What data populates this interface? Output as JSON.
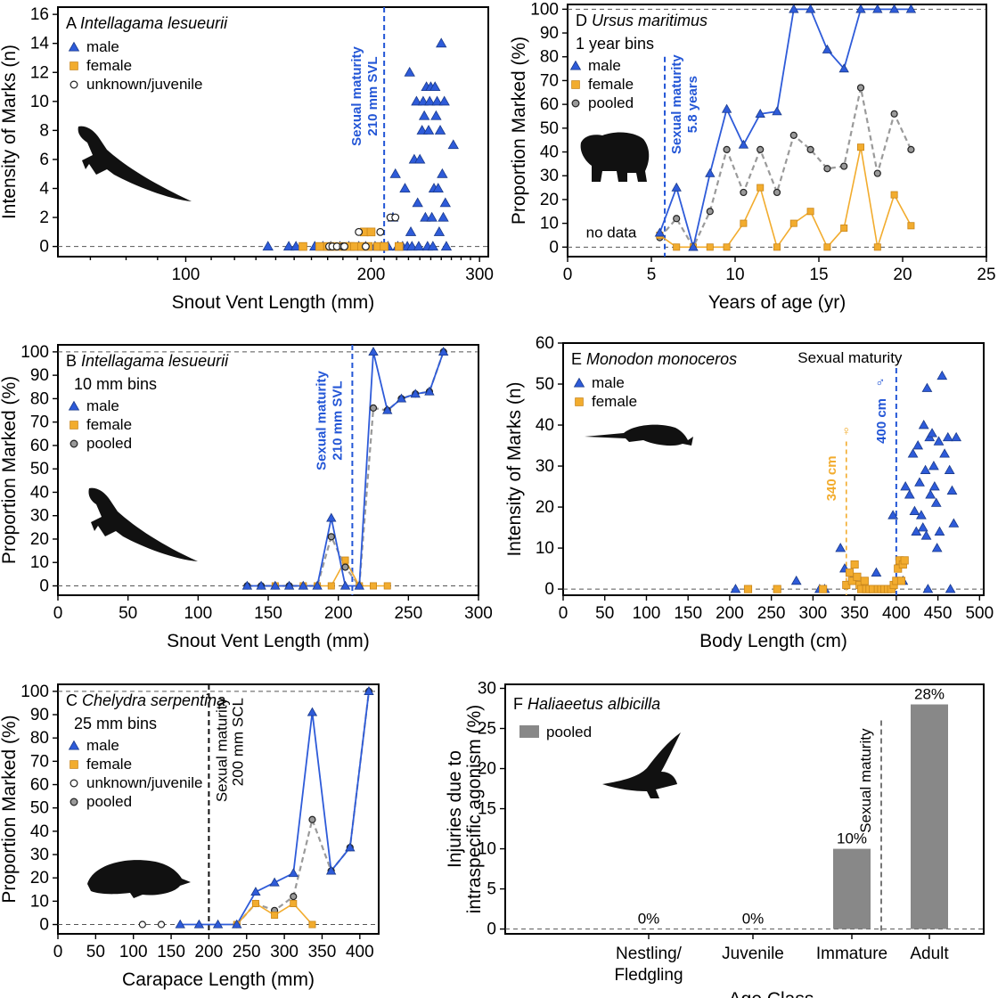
{
  "colors": {
    "male": "#2e5bd9",
    "female": "#f2ac2e",
    "pooled": "#9a9a9a",
    "unknown": "#ffffff",
    "bar": "#888888",
    "maturity_blue": "#2356d6",
    "maturity_orange": "#f2ac2e"
  },
  "chart_data": [
    {
      "id": "A",
      "type": "scatter",
      "panel_letter": "A",
      "species": "Intellagama lesueurii",
      "xlabel": "Snout Vent Length (mm)",
      "ylabel": "Intensity of Marks (n)",
      "xscale": "log",
      "xlim": [
        62,
        310
      ],
      "ylim": [
        -0.7,
        16.5
      ],
      "xticks": [
        100,
        200,
        300
      ],
      "yticks": [
        0,
        2,
        4,
        6,
        8,
        10,
        12,
        14,
        16
      ],
      "legend": [
        "male",
        "female",
        "unknown/juvenile"
      ],
      "maturity": {
        "x": 210,
        "label1": "Sexual maturity",
        "label2": "210 mm SVL"
      },
      "series": [
        {
          "name": "male",
          "marker": "triangle",
          "points": [
            [
              136,
              0
            ],
            [
              147,
              0
            ],
            [
              151,
              0
            ],
            [
              162,
              0
            ],
            [
              167,
              0
            ],
            [
              172,
              0
            ],
            [
              178,
              0
            ],
            [
              184,
              0
            ],
            [
              191,
              0
            ],
            [
              196,
              0
            ],
            [
              203,
              0
            ],
            [
              208,
              0
            ],
            [
              213,
              0
            ],
            [
              217,
              2
            ],
            [
              219,
              5
            ],
            [
              221,
              0
            ],
            [
              225,
              0
            ],
            [
              227,
              4
            ],
            [
              229,
              0
            ],
            [
              231,
              12
            ],
            [
              232,
              1
            ],
            [
              233,
              0
            ],
            [
              235,
              6
            ],
            [
              237,
              10
            ],
            [
              238,
              3
            ],
            [
              239,
              0
            ],
            [
              240,
              6
            ],
            [
              242,
              8
            ],
            [
              243,
              10
            ],
            [
              244,
              9
            ],
            [
              245,
              2
            ],
            [
              246,
              11
            ],
            [
              247,
              0
            ],
            [
              248,
              8
            ],
            [
              249,
              10
            ],
            [
              250,
              11
            ],
            [
              251,
              2
            ],
            [
              252,
              0
            ],
            [
              253,
              4
            ],
            [
              254,
              11
            ],
            [
              255,
              9
            ],
            [
              256,
              10
            ],
            [
              257,
              4
            ],
            [
              258,
              1
            ],
            [
              259,
              8
            ],
            [
              260,
              14
            ],
            [
              261,
              5
            ],
            [
              262,
              2
            ],
            [
              263,
              10
            ],
            [
              264,
              3
            ],
            [
              265,
              0
            ],
            [
              272,
              7
            ]
          ]
        },
        {
          "name": "female",
          "marker": "square",
          "points": [
            [
              155,
              0
            ],
            [
              165,
              0
            ],
            [
              170,
              0
            ],
            [
              174,
              0
            ],
            [
              180,
              0
            ],
            [
              185,
              0
            ],
            [
              188,
              0
            ],
            [
              193,
              0
            ],
            [
              195,
              1
            ],
            [
              198,
              0
            ],
            [
              200,
              1
            ],
            [
              205,
              0
            ],
            [
              210,
              0
            ],
            [
              222,
              0
            ]
          ]
        },
        {
          "name": "unknown/juvenile",
          "marker": "circle",
          "points": [
            [
              171,
              0
            ],
            [
              173,
              0
            ],
            [
              176,
              0
            ],
            [
              180,
              0
            ],
            [
              181,
              0
            ],
            [
              191,
              1
            ],
            [
              196,
              0
            ],
            [
              207,
              1
            ],
            [
              215,
              2
            ],
            [
              219,
              2
            ]
          ]
        }
      ]
    },
    {
      "id": "B",
      "type": "line",
      "panel_letter": "B",
      "species": "Intellagama lesueurii",
      "bins": "10 mm bins",
      "xlabel": "Snout Vent Length (mm)",
      "ylabel": "Proportion Marked (%)",
      "xlim": [
        0,
        300
      ],
      "ylim": [
        -4,
        103
      ],
      "xticks": [
        0,
        50,
        100,
        150,
        200,
        250,
        300
      ],
      "yticks": [
        0,
        10,
        20,
        30,
        40,
        50,
        60,
        70,
        80,
        90,
        100
      ],
      "legend": [
        "male",
        "female",
        "pooled"
      ],
      "maturity": {
        "x": 210,
        "label1": "Sexual maturity",
        "label2": "210 mm SVL"
      },
      "series": [
        {
          "name": "male",
          "x": [
            135,
            145,
            155,
            165,
            175,
            185,
            195,
            205,
            215,
            225,
            235,
            245,
            255,
            265,
            275
          ],
          "y": [
            0,
            0,
            0,
            0,
            0,
            0,
            29,
            0,
            0,
            100,
            75,
            80,
            82,
            83,
            100
          ]
        },
        {
          "name": "female",
          "x": [
            155,
            175,
            185,
            195,
            205,
            215,
            225,
            235
          ],
          "y": [
            0,
            0,
            0,
            0,
            11,
            0,
            0,
            0
          ]
        },
        {
          "name": "pooled",
          "x": [
            135,
            145,
            155,
            165,
            175,
            185,
            195,
            205,
            215,
            225,
            235,
            245,
            255,
            265,
            275
          ],
          "y": [
            0,
            0,
            0,
            0,
            0,
            0,
            21,
            8,
            0,
            76,
            75,
            80,
            82,
            83,
            100
          ]
        }
      ]
    },
    {
      "id": "C",
      "type": "line",
      "panel_letter": "C",
      "species": "Chelydra serpentina",
      "bins": "25 mm bins",
      "xlabel": "Carapace Length (mm)",
      "ylabel": "Proportion Marked (%)",
      "xlim": [
        0,
        425
      ],
      "ylim": [
        -4,
        103
      ],
      "xticks": [
        0,
        50,
        100,
        150,
        200,
        250,
        300,
        350,
        400
      ],
      "yticks": [
        0,
        10,
        20,
        30,
        40,
        50,
        60,
        70,
        80,
        90,
        100
      ],
      "legend": [
        "male",
        "female",
        "unknown/juvenile",
        "pooled"
      ],
      "maturity": {
        "x": 200,
        "label1": "Sexual maturity",
        "label2": "200 mm SCL"
      },
      "series": [
        {
          "name": "male",
          "x": [
            162,
            187,
            212,
            237,
            262,
            287,
            312,
            337,
            362,
            387,
            412
          ],
          "y": [
            0,
            0,
            0,
            0,
            14,
            18,
            22,
            91,
            23,
            33,
            100
          ]
        },
        {
          "name": "female",
          "x": [
            237,
            262,
            287,
            312,
            337
          ],
          "y": [
            0,
            9,
            4,
            9,
            0
          ]
        },
        {
          "name": "unknown/juvenile",
          "x": [
            112,
            137
          ],
          "y": [
            0,
            0
          ]
        },
        {
          "name": "pooled",
          "x": [
            237,
            262,
            287,
            312,
            337,
            362,
            387,
            412
          ],
          "y": [
            0,
            9,
            6,
            12,
            45,
            23,
            33,
            100
          ]
        }
      ]
    },
    {
      "id": "D",
      "type": "line",
      "panel_letter": "D",
      "species": "Ursus maritimus",
      "bins": "1 year bins",
      "xlabel": "Years of age (yr)",
      "ylabel": "Proportion Marked (%)",
      "xlim": [
        0,
        25
      ],
      "ylim": [
        -4,
        102
      ],
      "xticks": [
        0,
        5,
        10,
        15,
        20,
        25
      ],
      "yticks": [
        0,
        10,
        20,
        30,
        40,
        50,
        60,
        70,
        80,
        90,
        100
      ],
      "legend": [
        "male",
        "female",
        "pooled"
      ],
      "no_data": "no data",
      "maturity": {
        "x": 5.8,
        "label1": "Sexual maturity",
        "label2": "5.8 years"
      },
      "series": [
        {
          "name": "male",
          "x": [
            5.5,
            6.5,
            7.5,
            8.5,
            9.5,
            10.5,
            11.5,
            12.5,
            13.5,
            14.5,
            15.5,
            16.5,
            17.5,
            18.5,
            19.5,
            20.5
          ],
          "y": [
            6,
            25,
            0,
            31,
            58,
            43,
            56,
            57,
            100,
            100,
            83,
            75,
            100,
            100,
            100,
            100
          ]
        },
        {
          "name": "female",
          "x": [
            5.5,
            6.5,
            7.5,
            8.5,
            9.5,
            10.5,
            11.5,
            12.5,
            13.5,
            14.5,
            15.5,
            16.5,
            17.5,
            18.5,
            19.5,
            20.5
          ],
          "y": [
            5,
            0,
            0,
            0,
            0,
            10,
            25,
            0,
            10,
            15,
            0,
            8,
            42,
            0,
            22,
            9
          ]
        },
        {
          "name": "pooled",
          "x": [
            5.5,
            6.5,
            7.5,
            8.5,
            9.5,
            10.5,
            11.5,
            12.5,
            13.5,
            14.5,
            15.5,
            16.5,
            17.5,
            18.5,
            19.5,
            20.5
          ],
          "y": [
            4,
            12,
            0,
            15,
            41,
            23,
            41,
            23,
            47,
            41,
            33,
            34,
            67,
            31,
            56,
            41
          ]
        }
      ]
    },
    {
      "id": "E",
      "type": "scatter",
      "panel_letter": "E",
      "species": "Monodon monoceros",
      "xlabel": "Body Length (cm)",
      "ylabel": "Intensity of Marks (n)",
      "xlim": [
        0,
        505
      ],
      "ylim": [
        -1.5,
        60
      ],
      "xticks": [
        0,
        50,
        100,
        150,
        200,
        250,
        300,
        350,
        400,
        450,
        500
      ],
      "yticks": [
        0,
        10,
        20,
        30,
        40,
        50,
        60
      ],
      "legend": [
        "male",
        "female"
      ],
      "maturity_title": "Sexual maturity",
      "maturity_female": {
        "x": 340,
        "label": "340 cm",
        "symbol": "♀"
      },
      "maturity_male": {
        "x": 400,
        "label": "400 cm",
        "symbol": "♂"
      },
      "series": [
        {
          "name": "male",
          "marker": "triangle",
          "points": [
            [
              207,
              0
            ],
            [
              280,
              2
            ],
            [
              308,
              0
            ],
            [
              314,
              0
            ],
            [
              333,
              10
            ],
            [
              338,
              5
            ],
            [
              348,
              3
            ],
            [
              376,
              4
            ],
            [
              396,
              18
            ],
            [
              408,
              2
            ],
            [
              411,
              25
            ],
            [
              416,
              23
            ],
            [
              420,
              33
            ],
            [
              422,
              19
            ],
            [
              424,
              14
            ],
            [
              426,
              35
            ],
            [
              428,
              26
            ],
            [
              430,
              18
            ],
            [
              432,
              15
            ],
            [
              433,
              40
            ],
            [
              435,
              29
            ],
            [
              436,
              13
            ],
            [
              437,
              49
            ],
            [
              438,
              0
            ],
            [
              440,
              37
            ],
            [
              441,
              23
            ],
            [
              443,
              38
            ],
            [
              445,
              30
            ],
            [
              446,
              25
            ],
            [
              448,
              21
            ],
            [
              449,
              10
            ],
            [
              451,
              36
            ],
            [
              452,
              14
            ],
            [
              455,
              52
            ],
            [
              458,
              33
            ],
            [
              462,
              37
            ],
            [
              464,
              29
            ],
            [
              465,
              0
            ],
            [
              467,
              24
            ],
            [
              469,
              16
            ],
            [
              472,
              37
            ]
          ]
        },
        {
          "name": "female",
          "marker": "square",
          "points": [
            [
              222,
              0
            ],
            [
              257,
              0
            ],
            [
              312,
              0
            ],
            [
              340,
              1
            ],
            [
              344,
              4
            ],
            [
              347,
              2
            ],
            [
              350,
              6
            ],
            [
              353,
              3
            ],
            [
              356,
              1
            ],
            [
              358,
              0
            ],
            [
              362,
              2
            ],
            [
              364,
              0
            ],
            [
              368,
              0
            ],
            [
              372,
              0
            ],
            [
              378,
              0
            ],
            [
              382,
              0
            ],
            [
              386,
              0
            ],
            [
              390,
              0
            ],
            [
              394,
              0
            ],
            [
              397,
              1
            ],
            [
              400,
              2
            ],
            [
              402,
              5
            ],
            [
              404,
              7
            ],
            [
              406,
              2
            ],
            [
              408,
              6
            ],
            [
              410,
              7
            ]
          ]
        }
      ]
    },
    {
      "id": "F",
      "type": "bar",
      "panel_letter": "F",
      "species": "Haliaeetus albicilla",
      "xlabel": "Age Class",
      "ylabel_line1": "Injuries due to",
      "ylabel_line2": "intraspecific agonism (%)",
      "ylim": [
        -0.6,
        30.5
      ],
      "yticks": [
        0,
        5,
        10,
        15,
        20,
        25,
        30
      ],
      "legend": [
        "pooled"
      ],
      "maturity_label": "Sexual maturity",
      "categories": [
        [
          "Nestling/",
          "Fledgling"
        ],
        [
          "Juvenile"
        ],
        [
          "Immature"
        ],
        [
          "Adult"
        ]
      ],
      "values": [
        0,
        0,
        10,
        28
      ],
      "value_labels": [
        "0%",
        "0%",
        "10%",
        "28%"
      ]
    }
  ]
}
